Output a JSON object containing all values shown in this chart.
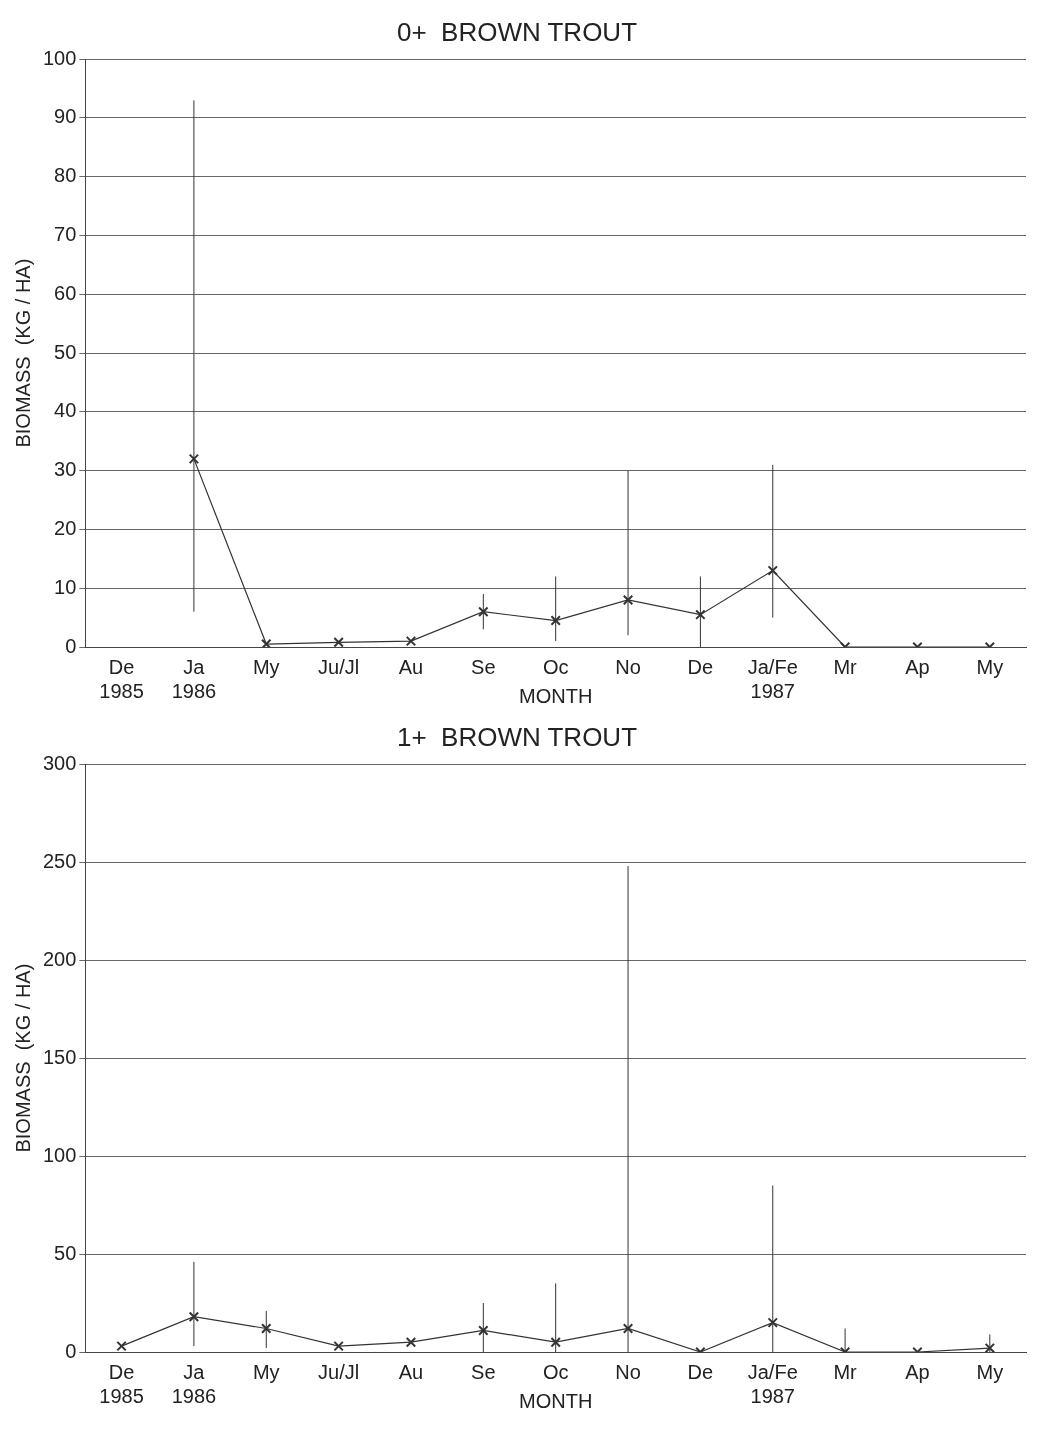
{
  "chart_data": [
    {
      "type": "line",
      "title": "0+  BROWN TROUT",
      "xlabel": "MONTH",
      "ylabel": "BIOMASS  (KG / HA)",
      "categories": [
        "De\n1985",
        "Ja\n1986",
        "My",
        "Ju/Jl",
        "Au",
        "Se",
        "Oc",
        "No",
        "De",
        "Ja/Fe\n1987",
        "Mr",
        "Ap",
        "My"
      ],
      "series": [
        {
          "color": "#333333",
          "values": [
            null,
            32,
            0.5,
            0.8,
            1,
            6,
            4.5,
            8,
            5.5,
            13,
            0,
            0,
            0
          ],
          "errors": [
            null,
            [
              6,
              93
            ],
            null,
            null,
            null,
            [
              3,
              9
            ],
            [
              1,
              12
            ],
            [
              2,
              30
            ],
            [
              0,
              12
            ],
            [
              5,
              31
            ],
            null,
            null,
            null
          ]
        }
      ],
      "ylim": [
        0,
        100
      ],
      "yticks": [
        0,
        10,
        20,
        30,
        40,
        50,
        60,
        70,
        80,
        90,
        100
      ],
      "grid": "y",
      "marker": "cross",
      "legend": false
    },
    {
      "type": "line",
      "title": "1+  BROWN TROUT",
      "xlabel": "MONTH",
      "ylabel": "BIOMASS  (KG / HA)",
      "categories": [
        "De\n1985",
        "Ja\n1986",
        "My",
        "Ju/Jl",
        "Au",
        "Se",
        "Oc",
        "No",
        "De",
        "Ja/Fe\n1987",
        "Mr",
        "Ap",
        "My"
      ],
      "series": [
        {
          "color": "#333333",
          "values": [
            3,
            18,
            12,
            3,
            5,
            11,
            5,
            12,
            0,
            15,
            0,
            0,
            2
          ],
          "errors": [
            null,
            [
              3,
              46
            ],
            [
              2,
              21
            ],
            null,
            null,
            [
              0,
              25
            ],
            [
              0,
              35
            ],
            [
              0,
              248
            ],
            null,
            [
              0,
              85
            ],
            [
              0,
              12
            ],
            null,
            [
              0,
              9
            ]
          ]
        }
      ],
      "ylim": [
        0,
        300
      ],
      "yticks": [
        0,
        50,
        100,
        150,
        200,
        250,
        300
      ],
      "grid": "y",
      "marker": "cross",
      "legend": false
    }
  ]
}
